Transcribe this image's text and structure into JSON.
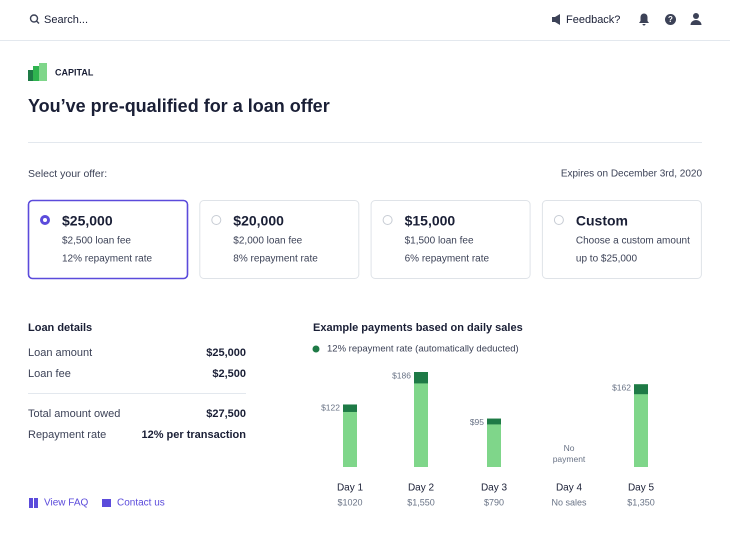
{
  "topbar": {
    "search": "Search...",
    "feedback": "Feedback?"
  },
  "brand": "CAPITAL",
  "title": "You’ve pre-qualified for a loan offer",
  "offer": {
    "prompt": "Select your offer:",
    "expires": "Expires on December 3rd, 2020",
    "cards": [
      {
        "title": "$25,000",
        "lines": [
          "$2,500 loan fee",
          "12% repayment rate"
        ],
        "selected": true
      },
      {
        "title": "$20,000",
        "lines": [
          "$2,000 loan fee",
          "8% repayment rate"
        ],
        "selected": false
      },
      {
        "title": "$15,000",
        "lines": [
          "$1,500 loan fee",
          "6% repayment rate"
        ],
        "selected": false
      },
      {
        "title": "Custom",
        "lines": [
          "Choose a custom amount",
          "up to $25,000"
        ],
        "selected": false
      }
    ]
  },
  "loan_details": {
    "title": "Loan details",
    "rows": [
      [
        "Loan amount",
        "$25,000"
      ],
      [
        "Loan fee",
        "$2,500"
      ],
      [
        "Total amount owed",
        "$27,500"
      ],
      [
        "Repayment rate",
        "12% per transaction"
      ]
    ]
  },
  "links": [
    "View FAQ",
    "Contact us"
  ],
  "chart_data": {
    "type": "bar",
    "title": "Example payments based on daily sales",
    "legend": "12% repayment rate (automatically deducted)",
    "categories": [
      "Day 1",
      "Day 2",
      "Day 3",
      "Day 4",
      "Day 5"
    ],
    "sales": [
      1020,
      1550,
      790,
      null,
      1350
    ],
    "sales_labels": [
      "$1020",
      "$1,550",
      "$790",
      "No sales",
      "$1,350"
    ],
    "repayments": [
      122,
      186,
      95,
      null,
      162
    ],
    "repayment_labels": [
      "$122",
      "$186",
      "$95",
      "No payment",
      "$162"
    ],
    "sales_color": "#7fd68a",
    "repayment_color": "#1e7a46"
  }
}
